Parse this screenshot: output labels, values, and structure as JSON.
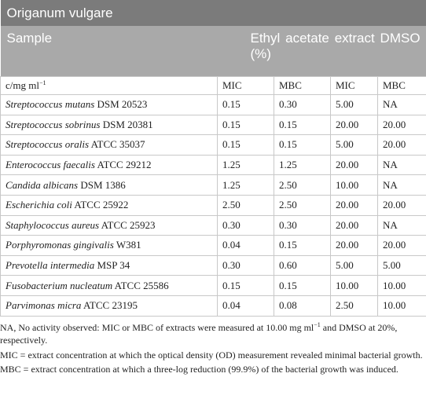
{
  "table": {
    "title": "Origanum vulgare",
    "header": {
      "sample": "Sample",
      "extract": "Ethyl acetate extract DMSO (%)"
    },
    "subheader": {
      "unit": "c/mg ml",
      "unit_sup": "−1",
      "columns": [
        "MIC",
        "MBC",
        "MIC",
        "MBC"
      ]
    },
    "rows": [
      {
        "species": "Streptococcus mutans",
        "strain": "DSM 20523",
        "values": [
          "0.15",
          "0.30",
          "5.00",
          "NA"
        ]
      },
      {
        "species": "Streptococcus sobrinus",
        "strain": "DSM 20381",
        "values": [
          "0.15",
          "0.15",
          "20.00",
          "20.00"
        ]
      },
      {
        "species": "Streptococcus oralis",
        "strain": "ATCC 35037",
        "values": [
          "0.15",
          "0.15",
          "5.00",
          "20.00"
        ]
      },
      {
        "species": "Enterococcus faecalis",
        "strain": "ATCC 29212",
        "values": [
          "1.25",
          "1.25",
          "20.00",
          "NA"
        ]
      },
      {
        "species": "Candida albicans",
        "strain": "DSM 1386",
        "values": [
          "1.25",
          "2.50",
          "10.00",
          "NA"
        ]
      },
      {
        "species": "Escherichia coli",
        "strain": "ATCC 25922",
        "values": [
          "2.50",
          "2.50",
          "20.00",
          "20.00"
        ]
      },
      {
        "species": "Staphylococcus aureus",
        "strain": "ATCC 25923",
        "values": [
          "0.30",
          "0.30",
          "20.00",
          "NA"
        ]
      },
      {
        "species": "Porphyromonas gingivalis",
        "strain": "W381",
        "values": [
          "0.04",
          "0.15",
          "20.00",
          "20.00"
        ]
      },
      {
        "species": "Prevotella intermedia",
        "strain": "MSP 34",
        "values": [
          "0.30",
          "0.60",
          "5.00",
          "5.00"
        ]
      },
      {
        "species": "Fusobacterium nucleatum",
        "strain": "ATCC 25586",
        "values": [
          "0.15",
          "0.15",
          "10.00",
          "10.00"
        ]
      },
      {
        "species": "Parvimonas micra",
        "strain": "ATCC 23195",
        "values": [
          "0.04",
          "0.08",
          "2.50",
          "10.00"
        ]
      }
    ]
  },
  "footnotes": [
    {
      "before": "NA, No activity observed: MIC or MBC of extracts were measured at 10.00 mg ml",
      "sup": "−1",
      "after": " and DMSO at 20%, respectively."
    },
    {
      "before": "MIC = extract concentration at which the optical density (OD) measurement revealed minimal bacterial growth."
    },
    {
      "before": "MBC = extract concentration at which a three-log reduction (99.9%) of the bacterial growth was induced."
    }
  ]
}
